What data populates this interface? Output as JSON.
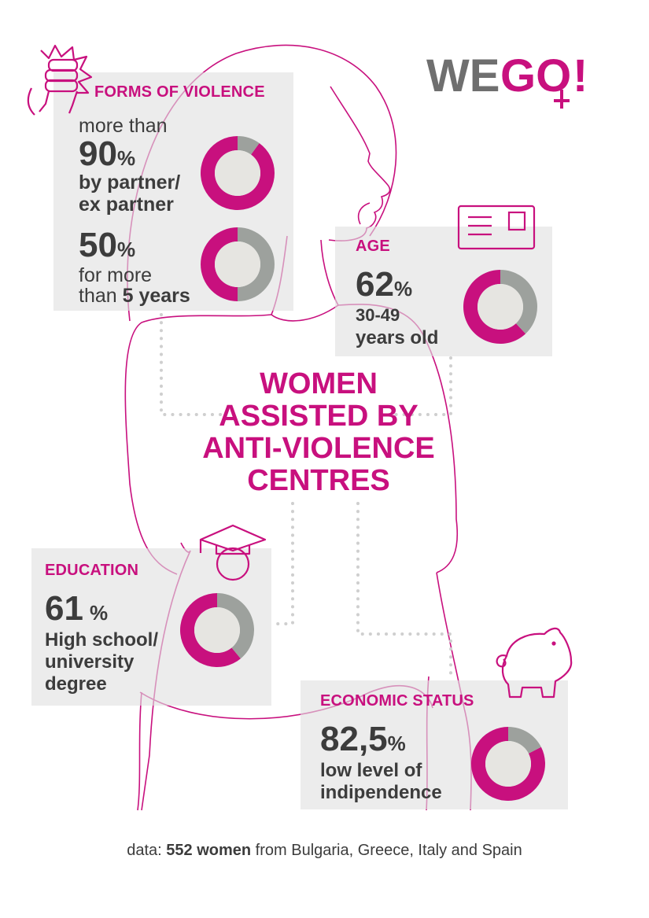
{
  "logo": {
    "part1": "WE",
    "part2": "GO",
    "part3": "!"
  },
  "main_title": "WOMEN\nASSISTED BY\nANTI-VIOLENCE\nCENTRES",
  "forms": {
    "title": "FORMS OF VIOLENCE",
    "stat1": {
      "pre": "more than",
      "value": "90",
      "unit": "%",
      "line1": "by partner/",
      "line2": "ex partner"
    },
    "stat2": {
      "value": "50",
      "unit": "%",
      "line1": "for more",
      "line2_pre": "than ",
      "line2_bold": "5 years"
    }
  },
  "age": {
    "title": "AGE",
    "value": "62",
    "unit": "%",
    "line1": "30-49",
    "line2": "years old"
  },
  "education": {
    "title": "EDUCATION",
    "value": "61",
    "unit": "%",
    "line1": "High school/",
    "line2": "university",
    "line3": "degree"
  },
  "economic": {
    "title": "ECONOMIC STATUS",
    "value": "82,5",
    "unit": "%",
    "line1": "low level of",
    "line2": "indipendence"
  },
  "footer": {
    "pre": "data: ",
    "bold": "552 women",
    "post": " from Bulgaria, Greece, Italy and Spain"
  },
  "colors": {
    "magenta": "#c8107e",
    "grey": "#9da19d",
    "donut_center": "#e6e5e1",
    "panel": "#e0e0e0",
    "text": "#3c3c3c"
  },
  "icons": [
    "fist-icon",
    "id-card-icon",
    "graduation-cap-icon",
    "piggy-bank-icon"
  ],
  "chart_data": [
    {
      "type": "pie",
      "name": "partner",
      "labels": [
        "by partner/ex partner",
        "other"
      ],
      "values": [
        90,
        10
      ]
    },
    {
      "type": "pie",
      "name": "duration",
      "labels": [
        "for more than 5 years",
        "other"
      ],
      "values": [
        50,
        50
      ]
    },
    {
      "type": "pie",
      "name": "age",
      "labels": [
        "30-49 years old",
        "other"
      ],
      "values": [
        62,
        38
      ]
    },
    {
      "type": "pie",
      "name": "education",
      "labels": [
        "High school/university degree",
        "other"
      ],
      "values": [
        61,
        39
      ]
    },
    {
      "type": "pie",
      "name": "economic",
      "labels": [
        "low level of indipendence",
        "other"
      ],
      "values": [
        82.5,
        17.5
      ]
    }
  ]
}
